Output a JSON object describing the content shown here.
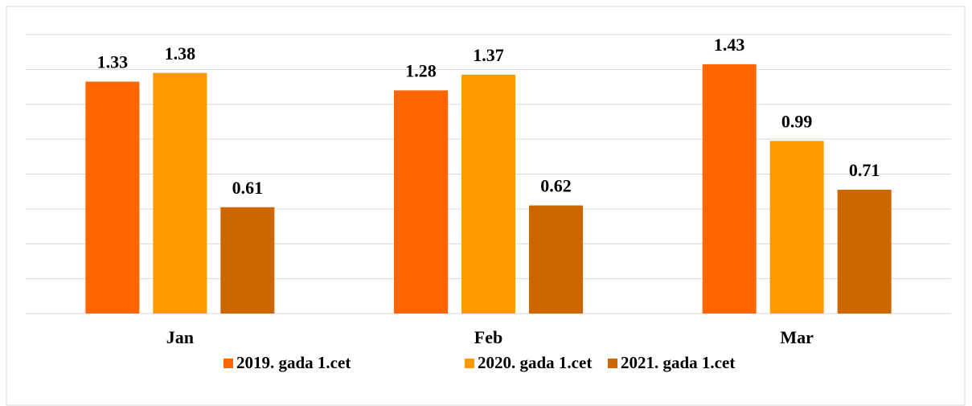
{
  "chart_data": {
    "type": "bar",
    "categories": [
      "Jan",
      "Feb",
      "Mar"
    ],
    "series": [
      {
        "name": "2019. gada 1.cet",
        "color": "#ff6600",
        "values": [
          1.33,
          1.28,
          1.43
        ]
      },
      {
        "name": "2020. gada 1.cet",
        "color": "#ff9900",
        "values": [
          1.38,
          1.37,
          0.99
        ]
      },
      {
        "name": "2021. gada 1.cet",
        "color": "#cc6600",
        "values": [
          0.61,
          0.62,
          0.71
        ]
      }
    ],
    "ylim": [
      0,
      1.6
    ],
    "yticks": [
      0,
      0.2,
      0.4,
      0.6,
      0.8,
      1.0,
      1.2,
      1.4,
      1.6
    ],
    "grid": true,
    "legend": "bottom"
  }
}
